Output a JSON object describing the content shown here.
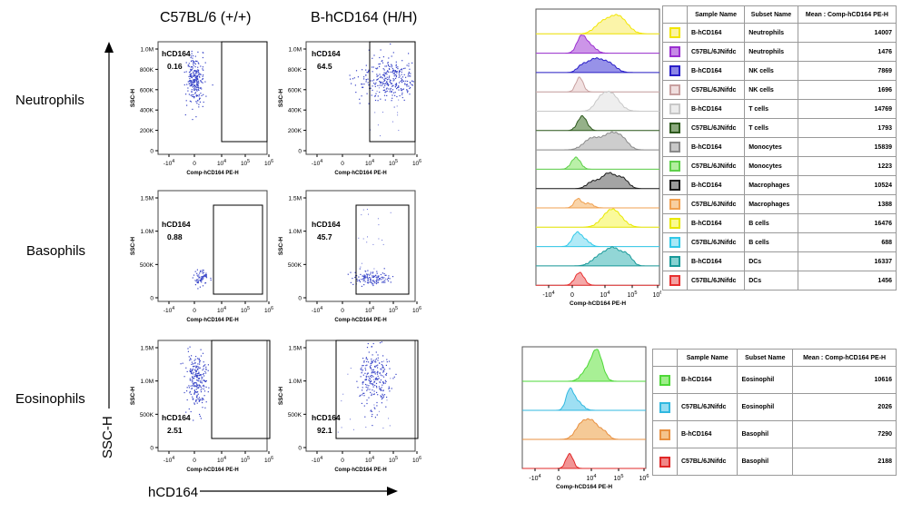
{
  "columns": [
    "C57BL/6 (+/+)",
    "B-hCD164 (H/H)"
  ],
  "rows": [
    "Neutrophils",
    "Basophils",
    "Eosinophils"
  ],
  "yaxis_title": "SSC-H",
  "xaxis_title": "hCD164",
  "chart_data": [
    {
      "type": "scatter",
      "panel": "Neutrophils C57BL/6 (+/+)",
      "gate_label": "hCD164",
      "gate_value": "0.16",
      "ylabel": "SSC-H",
      "xlabel": "Comp-hCD164 PE-H",
      "yticks": [
        "0",
        "200K",
        "400K",
        "600K",
        "800K",
        "1.0M"
      ],
      "xticks": [
        "-10^4",
        "0",
        "10^4",
        "10^5",
        "10^6"
      ]
    },
    {
      "type": "scatter",
      "panel": "Neutrophils B-hCD164 (H/H)",
      "gate_label": "hCD164",
      "gate_value": "64.5",
      "ylabel": "SSC-H",
      "xlabel": "Comp-hCD164 PE-H",
      "yticks": [
        "0",
        "200K",
        "400K",
        "600K",
        "800K",
        "1.0M"
      ],
      "xticks": [
        "-10^4",
        "0",
        "10^4",
        "10^5",
        "10^6"
      ]
    },
    {
      "type": "scatter",
      "panel": "Basophils C57BL/6 (+/+)",
      "gate_label": "hCD164",
      "gate_value": "0.88",
      "ylabel": "SSC-H",
      "xlabel": "Comp-hCD164 PE-H",
      "yticks": [
        "0",
        "500K",
        "1.0M",
        "1.5M"
      ],
      "xticks": [
        "-10^4",
        "0",
        "10^4",
        "10^5",
        "10^6"
      ]
    },
    {
      "type": "scatter",
      "panel": "Basophils B-hCD164 (H/H)",
      "gate_label": "hCD164",
      "gate_value": "45.7",
      "ylabel": "SSC-H",
      "xlabel": "Comp-hCD164 PE-H",
      "yticks": [
        "0",
        "500K",
        "1.0M",
        "1.5M"
      ],
      "xticks": [
        "-10^4",
        "0",
        "10^4",
        "10^5",
        "10^6"
      ]
    },
    {
      "type": "scatter",
      "panel": "Eosinophils C57BL/6 (+/+)",
      "gate_label": "hCD164",
      "gate_value": "2.51",
      "ylabel": "SSC-H",
      "xlabel": "Comp-hCD164 PE-H",
      "yticks": [
        "0",
        "500K",
        "1.0M",
        "1.5M"
      ],
      "xticks": [
        "-10^4",
        "0",
        "10^4",
        "10^5",
        "10^6"
      ]
    },
    {
      "type": "scatter",
      "panel": "Eosinophils B-hCD164 (H/H)",
      "gate_label": "hCD164",
      "gate_value": "92.1",
      "ylabel": "SSC-H",
      "xlabel": "Comp-hCD164 PE-H",
      "yticks": [
        "0",
        "500K",
        "1.0M",
        "1.5M"
      ],
      "xticks": [
        "-10^4",
        "0",
        "10^4",
        "10^5",
        "10^6"
      ]
    },
    {
      "type": "area",
      "xlabel": "Comp-hCD164 PE-H",
      "xticks": [
        "-10^4",
        "0",
        "10^4",
        "10^5",
        "10^6"
      ],
      "table_headers": [
        "Sample Name",
        "Subset Name",
        "Mean : Comp-hCD164 PE-H"
      ],
      "rows": [
        {
          "sample": "B-hCD164",
          "subset": "Neutrophils",
          "mean": "14007",
          "color": "#f2e600",
          "fill": "#fbf3a0"
        },
        {
          "sample": "C57BL/6JNifdc",
          "subset": "Neutrophils",
          "mean": "1476",
          "color": "#9b30d0",
          "fill": "#c68ae6"
        },
        {
          "sample": "B-hCD164",
          "subset": "NK cells",
          "mean": "7869",
          "color": "#2a1fc8",
          "fill": "#8c86e6"
        },
        {
          "sample": "C57BL/6JNifdc",
          "subset": "NK cells",
          "mean": "1696",
          "color": "#c8a0a0",
          "fill": "#f0dede"
        },
        {
          "sample": "B-hCD164",
          "subset": "T cells",
          "mean": "14769",
          "color": "#c8c8c8",
          "fill": "#ececec"
        },
        {
          "sample": "C57BL/6JNifdc",
          "subset": "T cells",
          "mean": "1793",
          "color": "#2e5a1e",
          "fill": "#8aa87c"
        },
        {
          "sample": "B-hCD164",
          "subset": "Monocytes",
          "mean": "15839",
          "color": "#8a8a8a",
          "fill": "#c8c8c8"
        },
        {
          "sample": "C57BL/6JNifdc",
          "subset": "Monocytes",
          "mean": "1223",
          "color": "#5ed04a",
          "fill": "#b2ee9e"
        },
        {
          "sample": "B-hCD164",
          "subset": "Macrophages",
          "mean": "10524",
          "color": "#1a1a1a",
          "fill": "#9a9a9a"
        },
        {
          "sample": "C57BL/6JNifdc",
          "subset": "Macrophages",
          "mean": "1388",
          "color": "#f0a050",
          "fill": "#f8cfa0"
        },
        {
          "sample": "B-hCD164",
          "subset": "B cells",
          "mean": "16476",
          "color": "#e8e800",
          "fill": "#fafa90"
        },
        {
          "sample": "C57BL/6JNifdc",
          "subset": "B cells",
          "mean": "688",
          "color": "#30c8e8",
          "fill": "#a8e8f6"
        },
        {
          "sample": "B-hCD164",
          "subset": "DCs",
          "mean": "16337",
          "color": "#1a9a9a",
          "fill": "#86d2d2"
        },
        {
          "sample": "C57BL/6JNifdc",
          "subset": "DCs",
          "mean": "1456",
          "color": "#e83030",
          "fill": "#f4a0a0"
        }
      ]
    },
    {
      "type": "area",
      "xlabel": "Comp-hCD164 PE-H",
      "xticks": [
        "-10^4",
        "0",
        "10^4",
        "10^5",
        "10^6"
      ],
      "table_headers": [
        "Sample Name",
        "Subset Name",
        "Mean : Comp-hCD164 PE-H"
      ],
      "rows": [
        {
          "sample": "B-hCD164",
          "subset": "Eosinophil",
          "mean": "10616",
          "color": "#4ed838",
          "fill": "#9eee8a"
        },
        {
          "sample": "C57BL/6JNifdc",
          "subset": "Eosinophil",
          "mean": "2026",
          "color": "#30b8e0",
          "fill": "#94dcf2"
        },
        {
          "sample": "B-hCD164",
          "subset": "Basophil",
          "mean": "7290",
          "color": "#e89040",
          "fill": "#f4c48c"
        },
        {
          "sample": "C57BL/6JNifdc",
          "subset": "Basophil",
          "mean": "2188",
          "color": "#e02828",
          "fill": "#f08888"
        }
      ]
    }
  ]
}
